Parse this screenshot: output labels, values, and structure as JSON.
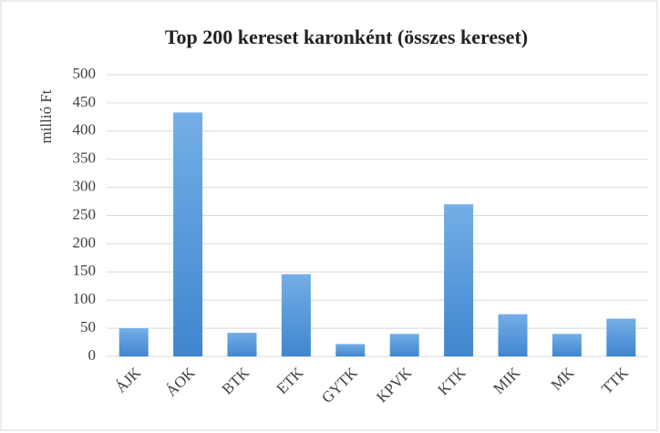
{
  "chart_data": {
    "type": "bar",
    "title": "Top 200 kereset karonként (összes kereset)",
    "ylabel": "millió Ft",
    "categories": [
      "ÁJK",
      "ÁOK",
      "BTK",
      "ETK",
      "GYTK",
      "KPVK",
      "KTK",
      "MIK",
      "MK",
      "TTK"
    ],
    "values": [
      50,
      433,
      42,
      146,
      22,
      40,
      270,
      75,
      40,
      67
    ],
    "color": "#5b9bd5",
    "ylim": [
      0,
      500
    ],
    "yticks": [
      0,
      50,
      100,
      150,
      200,
      250,
      300,
      350,
      400,
      450,
      500
    ],
    "grid": true
  }
}
